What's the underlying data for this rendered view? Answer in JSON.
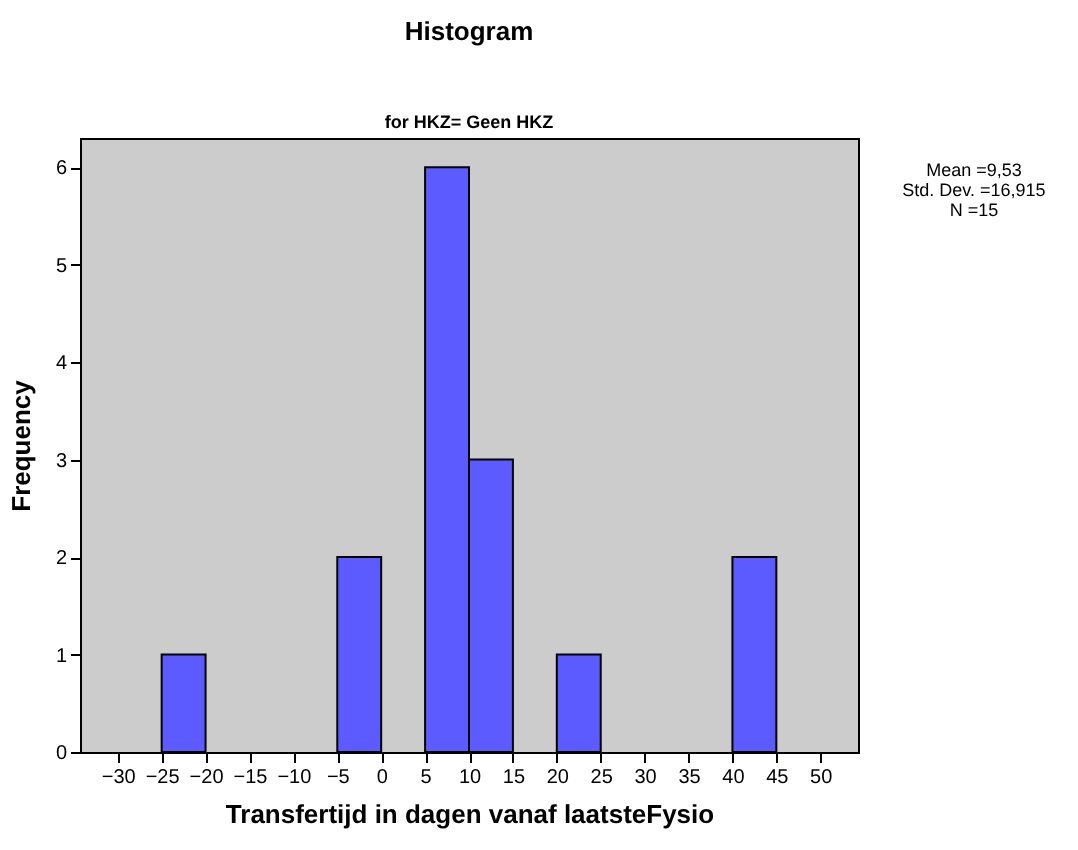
{
  "chart_data": {
    "type": "histogram",
    "title": "Histogram",
    "subtitle": "for HKZ= Geen HKZ",
    "xlabel": "Transfertijd in dagen vanaf laatsteFysio",
    "ylabel": "Frequency",
    "bins": [
      -25,
      -20,
      -15,
      -10,
      -5,
      0,
      5,
      10,
      15,
      20,
      25,
      30,
      35,
      40,
      45
    ],
    "values": [
      1,
      0,
      0,
      0,
      2,
      0,
      6,
      3,
      0,
      1,
      0,
      0,
      0,
      2
    ],
    "color": "#5b5bff",
    "xlim": [
      -34.3,
      54.3
    ],
    "xticks": [
      -30,
      -25,
      -20,
      -15,
      -10,
      -5,
      0,
      5,
      10,
      15,
      20,
      25,
      30,
      35,
      40,
      45,
      50
    ],
    "ylim": [
      0,
      6.3
    ],
    "yticks": [
      0,
      1,
      2,
      3,
      4,
      5,
      6
    ],
    "grid": false,
    "annotations": [
      "Mean =9,53",
      "Std. Dev. =16,915",
      "N =15"
    ]
  }
}
